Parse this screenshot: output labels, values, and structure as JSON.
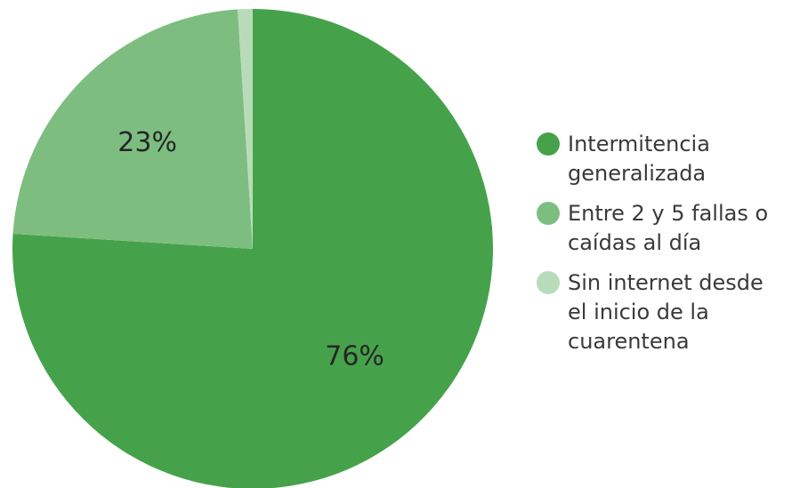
{
  "chart_data": {
    "type": "pie",
    "categories": [
      "Intermitencia\ngeneralizada",
      "Entre 2 y 5 fallas o\ncaídas al día",
      "Sin internet desde\nel inicio de la\ncuarentena"
    ],
    "values": [
      76,
      23,
      1
    ],
    "data_labels": [
      "76%",
      "23%",
      ""
    ],
    "colors": [
      "#46a24a",
      "#7dbe80",
      "#b8dcb9"
    ],
    "start_angle_deg": 0,
    "direction": "clockwise",
    "legend_position": "right"
  }
}
